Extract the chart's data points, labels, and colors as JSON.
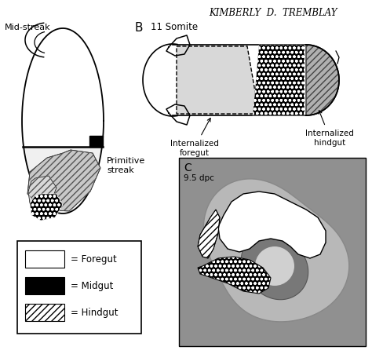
{
  "title_text": "KIMBERLY  D.  TREMBLAY",
  "title_fontsize": 8.5,
  "background_color": "#ffffff",
  "label_A_midstreak": "Mid-streak",
  "label_A_primstreak": "Primitive\nstreak",
  "label_B": "B",
  "label_B_somite": "11 Somite",
  "label_B_foregut": "Internalized\nforegut",
  "label_B_hindgut": "Internalized\nhindgut",
  "label_C": "C",
  "label_C_dpc": "9.5 dpc",
  "legend_items": [
    {
      "label": "= Foregut",
      "fc": "white",
      "ec": "black",
      "hatch": ""
    },
    {
      "label": "= Midgut",
      "fc": "black",
      "ec": "white",
      "hatch": "oooo"
    },
    {
      "label": "= Hindgut",
      "fc": "white",
      "ec": "black",
      "hatch": "////"
    }
  ]
}
